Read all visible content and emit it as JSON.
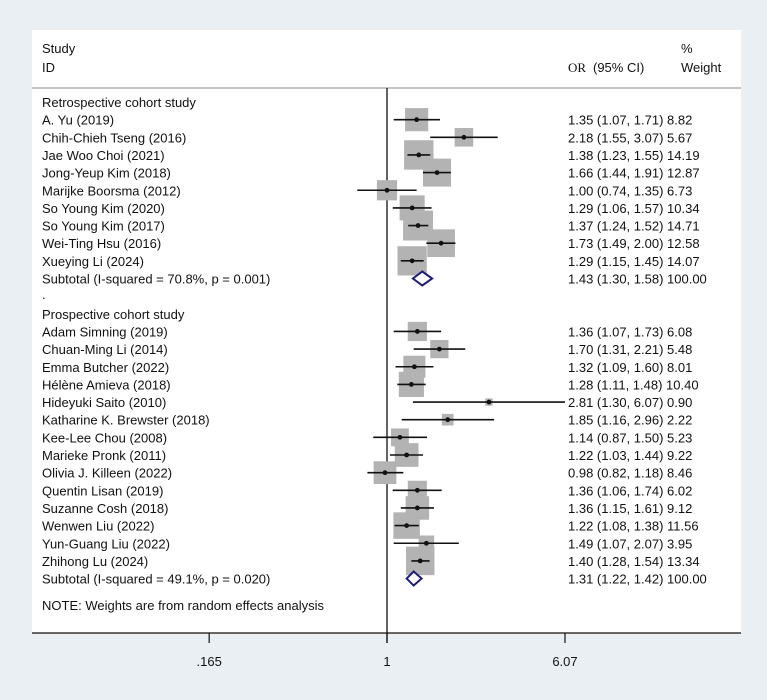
{
  "chart_data": {
    "type": "forest",
    "scale": "log",
    "header": {
      "study": "Study",
      "id": "ID",
      "or_label": "OR",
      "ci_label": "(95% CI)",
      "weight_pct": "%",
      "weight": "Weight"
    },
    "axis": {
      "ticks": [
        0.165,
        1,
        6.07
      ],
      "tick_labels": [
        ".165",
        "1",
        "6.07"
      ],
      "null_line": 1
    },
    "groups": [
      {
        "name": "Retrospective cohort study",
        "studies": [
          {
            "label": "A. Yu (2019)",
            "or": 1.35,
            "lo": 1.07,
            "hi": 1.71,
            "weight": 8.82,
            "text": "1.35 (1.07, 1.71) 8.82"
          },
          {
            "label": "Chih-Chieh Tseng (2016)",
            "or": 2.18,
            "lo": 1.55,
            "hi": 3.07,
            "weight": 5.67,
            "text": "2.18 (1.55, 3.07) 5.67"
          },
          {
            "label": "Jae Woo Choi (2021)",
            "or": 1.38,
            "lo": 1.23,
            "hi": 1.55,
            "weight": 14.19,
            "text": "1.38 (1.23, 1.55) 14.19"
          },
          {
            "label": "Jong-Yeup Kim (2018)",
            "or": 1.66,
            "lo": 1.44,
            "hi": 1.91,
            "weight": 12.87,
            "text": "1.66 (1.44, 1.91) 12.87"
          },
          {
            "label": "Marijke Boorsma (2012)",
            "or": 1.0,
            "lo": 0.74,
            "hi": 1.35,
            "weight": 6.73,
            "text": "1.00 (0.74, 1.35) 6.73"
          },
          {
            "label": "So Young Kim (2020)",
            "or": 1.29,
            "lo": 1.06,
            "hi": 1.57,
            "weight": 10.34,
            "text": "1.29 (1.06, 1.57) 10.34"
          },
          {
            "label": "So Young Kim (2017)",
            "or": 1.37,
            "lo": 1.24,
            "hi": 1.52,
            "weight": 14.71,
            "text": "1.37 (1.24, 1.52) 14.71"
          },
          {
            "label": "Wei-Ting Hsu (2016)",
            "or": 1.73,
            "lo": 1.49,
            "hi": 2.0,
            "weight": 12.58,
            "text": "1.73 (1.49, 2.00) 12.58"
          },
          {
            "label": "Xueying Li (2024)",
            "or": 1.29,
            "lo": 1.15,
            "hi": 1.45,
            "weight": 14.07,
            "text": "1.29 (1.15, 1.45) 14.07"
          }
        ],
        "subtotal": {
          "label": "Subtotal  (I-squared = 70.8%, p = 0.001)",
          "or": 1.43,
          "lo": 1.3,
          "hi": 1.58,
          "weight": 100.0,
          "text": "1.43 (1.30, 1.58) 100.00"
        }
      },
      {
        "name": "Prospective cohort study",
        "studies": [
          {
            "label": "Adam Simning (2019)",
            "or": 1.36,
            "lo": 1.07,
            "hi": 1.73,
            "weight": 6.08,
            "text": "1.36 (1.07, 1.73) 6.08"
          },
          {
            "label": "Chuan-Ming Li (2014)",
            "or": 1.7,
            "lo": 1.31,
            "hi": 2.21,
            "weight": 5.48,
            "text": "1.70 (1.31, 2.21) 5.48"
          },
          {
            "label": "Emma Butcher (2022)",
            "or": 1.32,
            "lo": 1.09,
            "hi": 1.6,
            "weight": 8.01,
            "text": "1.32 (1.09, 1.60) 8.01"
          },
          {
            "label": "Hélène Amieva (2018)",
            "or": 1.28,
            "lo": 1.11,
            "hi": 1.48,
            "weight": 10.4,
            "text": "1.28 (1.11, 1.48) 10.40"
          },
          {
            "label": "Hideyuki Saito (2010)",
            "or": 2.81,
            "lo": 1.3,
            "hi": 6.07,
            "weight": 0.9,
            "text": "2.81 (1.30, 6.07) 0.90"
          },
          {
            "label": "Katharine K. Brewster (2018)",
            "or": 1.85,
            "lo": 1.16,
            "hi": 2.96,
            "weight": 2.22,
            "text": "1.85 (1.16, 2.96) 2.22"
          },
          {
            "label": "Kee-Lee Chou (2008)",
            "or": 1.14,
            "lo": 0.87,
            "hi": 1.5,
            "weight": 5.23,
            "text": "1.14 (0.87, 1.50) 5.23"
          },
          {
            "label": "Marieke Pronk (2011)",
            "or": 1.22,
            "lo": 1.03,
            "hi": 1.44,
            "weight": 9.22,
            "text": "1.22 (1.03, 1.44) 9.22"
          },
          {
            "label": "Olivia J. Killeen (2022)",
            "or": 0.98,
            "lo": 0.82,
            "hi": 1.18,
            "weight": 8.46,
            "text": "0.98 (0.82, 1.18) 8.46"
          },
          {
            "label": "Quentin Lisan (2019)",
            "or": 1.36,
            "lo": 1.06,
            "hi": 1.74,
            "weight": 6.02,
            "text": "1.36 (1.06, 1.74) 6.02"
          },
          {
            "label": "Suzanne Cosh (2018)",
            "or": 1.36,
            "lo": 1.15,
            "hi": 1.61,
            "weight": 9.12,
            "text": "1.36 (1.15, 1.61) 9.12"
          },
          {
            "label": "Wenwen Liu (2022)",
            "or": 1.22,
            "lo": 1.08,
            "hi": 1.38,
            "weight": 11.56,
            "text": "1.22 (1.08, 1.38) 11.56"
          },
          {
            "label": "Yun-Guang Liu (2022)",
            "or": 1.49,
            "lo": 1.07,
            "hi": 2.07,
            "weight": 3.95,
            "text": "1.49 (1.07, 2.07) 3.95"
          },
          {
            "label": "Zhihong Lu (2024)",
            "or": 1.4,
            "lo": 1.28,
            "hi": 1.54,
            "weight": 13.34,
            "text": "1.40 (1.28, 1.54) 13.34"
          }
        ],
        "subtotal": {
          "label": "Subtotal  (I-squared = 49.1%, p = 0.020)",
          "or": 1.31,
          "lo": 1.22,
          "hi": 1.42,
          "weight": 100.0,
          "text": "1.31 (1.22, 1.42) 100.00"
        }
      }
    ],
    "separator": ".",
    "note": "NOTE: Weights are from random effects analysis",
    "colors": {
      "box": "#b3b3b3",
      "diamond": "#1c1c78",
      "line": "#111111"
    }
  }
}
